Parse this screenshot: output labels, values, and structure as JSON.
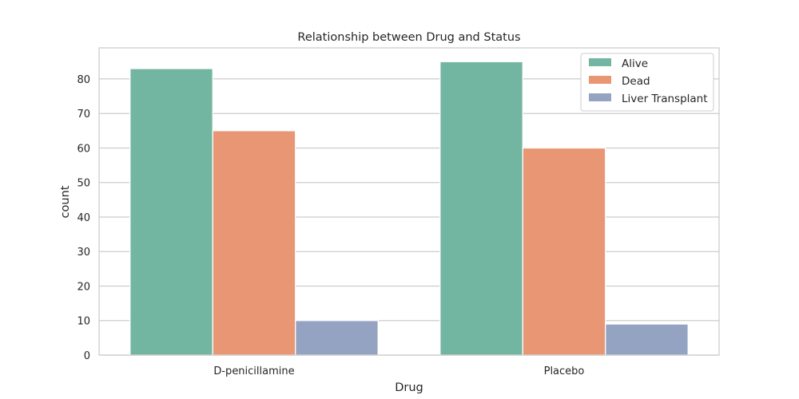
{
  "chart_data": {
    "type": "bar",
    "title": "Relationship between Drug and Status",
    "xlabel": "Drug",
    "ylabel": "count",
    "categories": [
      "D-penicillamine",
      "Placebo"
    ],
    "series": [
      {
        "name": "Alive",
        "values": [
          83,
          85
        ],
        "color": "#72b6a1"
      },
      {
        "name": "Dead",
        "values": [
          65,
          60
        ],
        "color": "#e99675"
      },
      {
        "name": "Liver Transplant",
        "values": [
          10,
          9
        ],
        "color": "#95a3c3"
      }
    ],
    "ylim": [
      0,
      89
    ],
    "yticks": [
      0,
      10,
      20,
      30,
      40,
      50,
      60,
      70,
      80
    ],
    "grid": "horizontal",
    "legend_position": "top-right"
  }
}
